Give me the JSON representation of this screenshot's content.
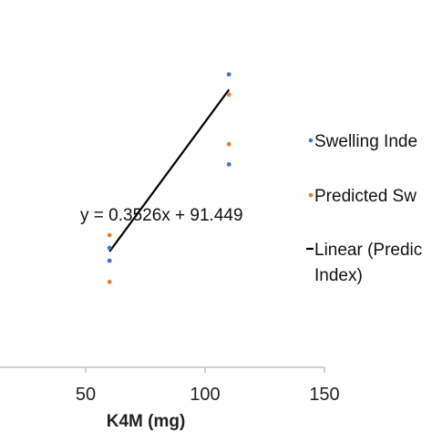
{
  "chart_data": {
    "type": "scatter",
    "xlabel": "K4M (mg)",
    "x_ticks": [
      "50",
      "100",
      "150"
    ],
    "xlim": [
      0,
      150
    ],
    "ylim": [
      100,
      140
    ],
    "equation": "y = 0.3526x + 91.449",
    "series": [
      {
        "name": "Swelling Inde",
        "color": "#4472C4",
        "marker": "dot",
        "points": [
          [
            60,
            113.0
          ],
          [
            60,
            111.6
          ],
          [
            110,
            131.9
          ],
          [
            110,
            122.1
          ]
        ]
      },
      {
        "name": "Predicted Sw",
        "color": "#ED7D31",
        "marker": "dot",
        "points": [
          [
            60,
            114.4
          ],
          [
            60,
            109.3
          ],
          [
            110,
            129.7
          ],
          [
            110,
            124.3
          ]
        ]
      },
      {
        "name": "Linear (Predic",
        "name_line2": "Index)",
        "color": "#000000",
        "marker": "line",
        "line": {
          "slope": 0.3526,
          "intercept": 91.449,
          "x_range": [
            60,
            110
          ]
        }
      }
    ]
  }
}
